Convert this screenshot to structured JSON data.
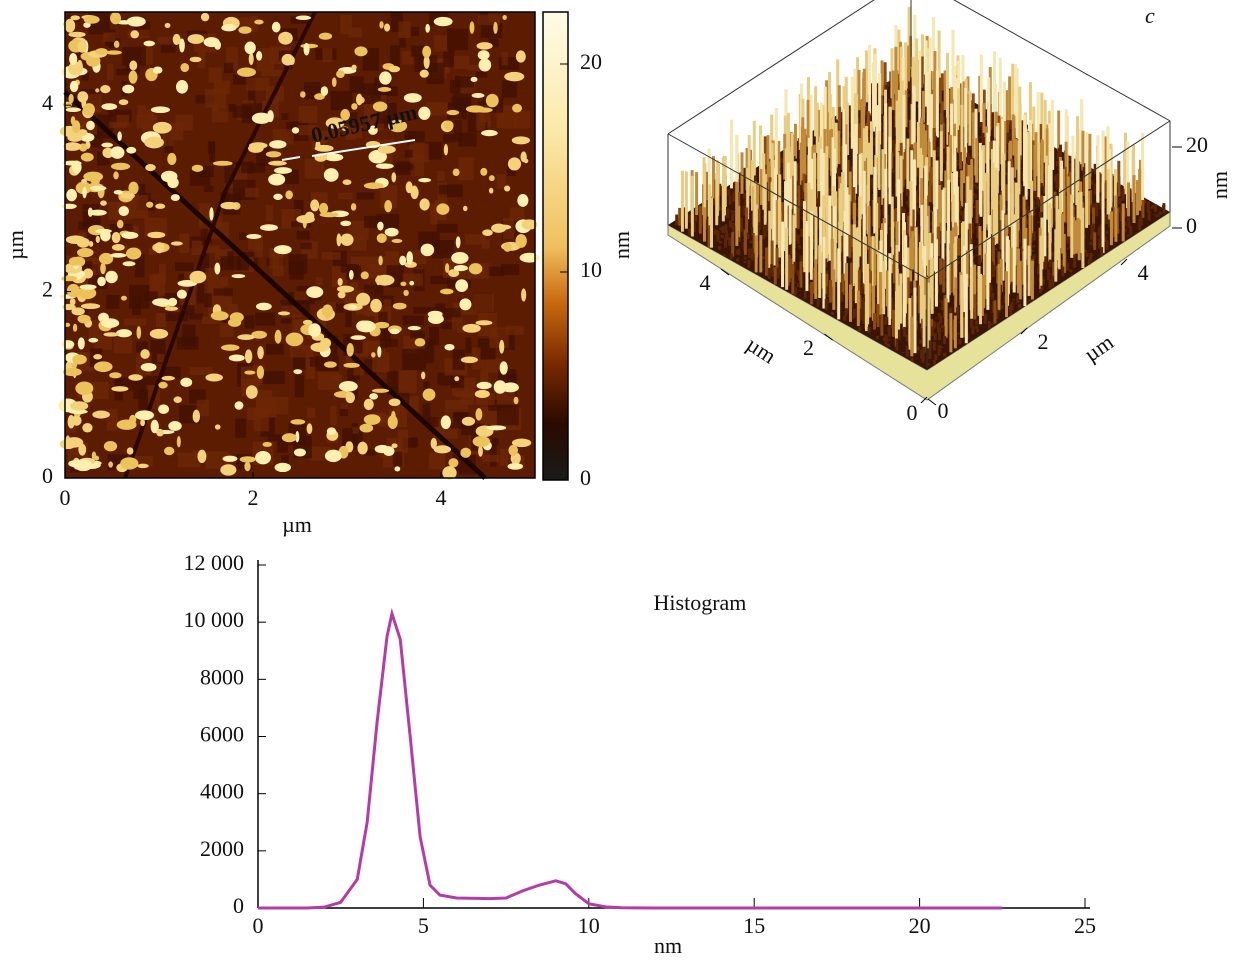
{
  "chart_data": [
    {
      "type": "heatmap",
      "xlabel": "µm",
      "ylabel": "µm",
      "xlim": [
        0,
        5
      ],
      "ylim": [
        0,
        5
      ],
      "xticks": [
        0,
        2,
        4
      ],
      "yticks": [
        0,
        2,
        4
      ],
      "colorbar": {
        "label": "nm",
        "lim": [
          0,
          22.5
        ],
        "ticks": [
          0,
          10,
          20
        ]
      },
      "annotation": "0.05957 µm"
    },
    {
      "type": "surface3d",
      "panel": "c",
      "xlabel": "µm",
      "ylabel": "µm",
      "zlabel": "nm",
      "xlim": [
        0,
        5
      ],
      "ylim": [
        0,
        5
      ],
      "zlim": [
        0,
        22.5
      ],
      "xticks": [
        0,
        2,
        4
      ],
      "yticks": [
        0,
        2,
        4
      ],
      "zticks": [
        0,
        20
      ]
    },
    {
      "type": "line",
      "title": "Histogram",
      "xlabel": "nm",
      "x": [
        0,
        1.5,
        2,
        2.5,
        3,
        3.3,
        3.6,
        3.9,
        4.05,
        4.3,
        4.6,
        4.9,
        5.2,
        5.5,
        6,
        7,
        7.5,
        8,
        8.5,
        9,
        9.3,
        9.6,
        10,
        10.5,
        11,
        12,
        22.5
      ],
      "series": [
        {
          "color": "#b43ca8",
          "values": [
            0,
            0,
            30,
            200,
            1000,
            3000,
            6500,
            9500,
            10300,
            9400,
            6000,
            2500,
            800,
            450,
            350,
            330,
            350,
            600,
            800,
            950,
            850,
            500,
            150,
            40,
            10,
            0,
            0
          ]
        }
      ],
      "xlim": [
        0,
        25
      ],
      "ylim": [
        0,
        12000
      ],
      "xticks": [
        0,
        5,
        10,
        15,
        20,
        25
      ],
      "yticks": [
        0,
        2000,
        4000,
        6000,
        8000,
        {
          "value": 10000,
          "label": "10 000"
        },
        {
          "value": 12000,
          "label": "12 000"
        }
      ]
    }
  ]
}
